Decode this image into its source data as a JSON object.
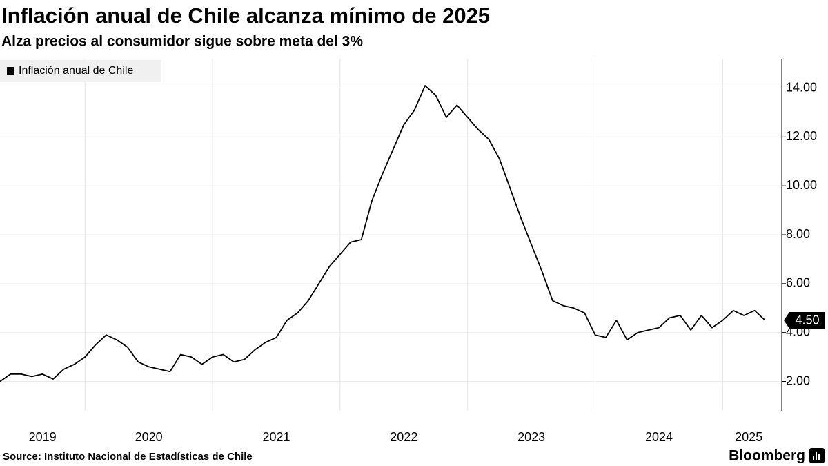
{
  "chart_data": {
    "type": "line",
    "title": "Inflación anual de Chile alcanza mínimo de 2025",
    "subtitle": "Alza precios al consumidor sigue sobre meta del 3%",
    "source": "Source: Instituto Nacional de Estadísticas de Chile",
    "brand": "Bloomberg",
    "x": [
      "2019-04",
      "2019-05",
      "2019-06",
      "2019-07",
      "2019-08",
      "2019-09",
      "2019-10",
      "2019-11",
      "2019-12",
      "2020-01",
      "2020-02",
      "2020-03",
      "2020-04",
      "2020-05",
      "2020-06",
      "2020-07",
      "2020-08",
      "2020-09",
      "2020-10",
      "2020-11",
      "2020-12",
      "2021-01",
      "2021-02",
      "2021-03",
      "2021-04",
      "2021-05",
      "2021-06",
      "2021-07",
      "2021-08",
      "2021-09",
      "2021-10",
      "2021-11",
      "2021-12",
      "2022-01",
      "2022-02",
      "2022-03",
      "2022-04",
      "2022-05",
      "2022-06",
      "2022-07",
      "2022-08",
      "2022-09",
      "2022-10",
      "2022-11",
      "2022-12",
      "2023-01",
      "2023-02",
      "2023-03",
      "2023-04",
      "2023-05",
      "2023-06",
      "2023-07",
      "2023-08",
      "2023-09",
      "2023-10",
      "2023-11",
      "2023-12",
      "2024-01",
      "2024-02",
      "2024-03",
      "2024-04",
      "2024-05",
      "2024-06",
      "2024-07",
      "2024-08",
      "2024-09",
      "2024-10",
      "2024-11",
      "2024-12",
      "2025-01",
      "2025-02",
      "2025-03",
      "2025-04"
    ],
    "xlim": [
      "2019-04",
      "2025-04"
    ],
    "years": [
      2019,
      2020,
      2021,
      2022,
      2023,
      2024,
      2025
    ],
    "series": [
      {
        "name": "Inflación anual de Chile",
        "color": "#000000",
        "values": [
          2.0,
          2.3,
          2.3,
          2.2,
          2.3,
          2.1,
          2.5,
          2.7,
          3.0,
          3.5,
          3.9,
          3.7,
          3.4,
          2.8,
          2.6,
          2.5,
          2.4,
          3.1,
          3.0,
          2.7,
          3.0,
          3.1,
          2.8,
          2.9,
          3.3,
          3.6,
          3.8,
          4.5,
          4.8,
          5.3,
          6.0,
          6.7,
          7.2,
          7.7,
          7.8,
          9.4,
          10.5,
          11.5,
          12.5,
          13.1,
          14.1,
          13.7,
          12.8,
          13.3,
          12.8,
          12.3,
          11.9,
          11.1,
          9.9,
          8.7,
          7.6,
          6.5,
          5.3,
          5.1,
          5.0,
          4.8,
          3.9,
          3.8,
          4.5,
          3.7,
          4.0,
          4.1,
          4.2,
          4.6,
          4.7,
          4.1,
          4.7,
          4.2,
          4.5,
          4.9,
          4.7,
          4.9,
          4.5
        ],
        "value_labels": [
          null,
          null,
          null,
          null,
          null,
          null,
          null,
          null,
          null,
          null,
          null,
          null,
          null,
          null,
          null,
          null,
          null,
          null,
          null,
          null,
          null,
          null,
          null,
          null,
          null,
          null,
          null,
          null,
          null,
          null,
          null,
          null,
          null,
          null,
          null,
          null,
          null,
          null,
          null,
          null,
          null,
          null,
          null,
          null,
          null,
          null,
          null,
          null,
          null,
          null,
          null,
          null,
          null,
          null,
          null,
          null,
          null,
          null,
          null,
          null,
          null,
          null,
          null,
          null,
          null,
          null,
          null,
          null,
          null,
          null,
          null,
          null,
          "4.50"
        ]
      }
    ],
    "ylim": [
      0.8,
      15.2
    ],
    "yticks": [
      {
        "value": 2,
        "label": "2.00"
      },
      {
        "value": 4,
        "label": "4.00"
      },
      {
        "value": 6,
        "label": "6.00"
      },
      {
        "value": 8,
        "label": "8.00"
      },
      {
        "value": 10,
        "label": "10.00"
      },
      {
        "value": 12,
        "label": "12.00"
      },
      {
        "value": 14,
        "label": "14.00"
      }
    ],
    "grid": true,
    "legend": "top-left"
  }
}
